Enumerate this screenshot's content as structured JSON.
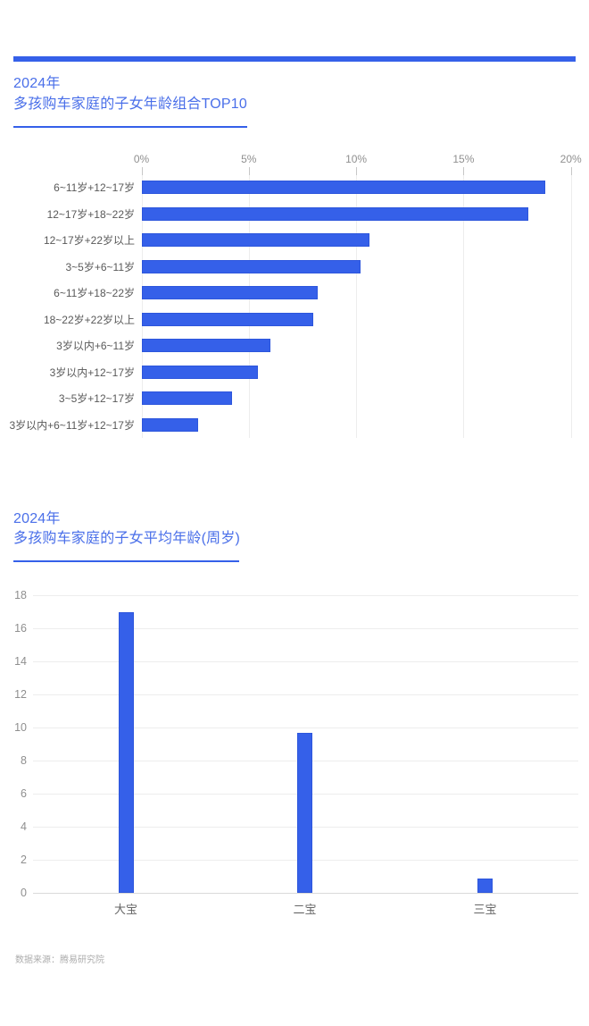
{
  "page": {
    "accent_color": "#3560e9",
    "title_color": "#4a6fe9",
    "grid_color": "#ededed",
    "axis_text_color": "#8f8f8f",
    "label_text_color": "#595959"
  },
  "footer": {
    "source_label": "数据来源：腾易研究院"
  },
  "chart_data": [
    {
      "type": "bar",
      "orientation": "horizontal",
      "title": "2024年",
      "subtitle": "多孩购车家庭的子女年龄组合TOP10",
      "categories": [
        "6~11岁+12~17岁",
        "12~17岁+18~22岁",
        "12~17岁+22岁以上",
        "3~5岁+6~11岁",
        "6~11岁+18~22岁",
        "18~22岁+22岁以上",
        "3岁以内+6~11岁",
        "3岁以内+12~17岁",
        "3~5岁+12~17岁",
        "3岁以内+6~11岁+12~17岁"
      ],
      "values": [
        18.8,
        18.0,
        10.6,
        10.2,
        8.2,
        8.0,
        6.0,
        5.4,
        4.2,
        2.6
      ],
      "unit": "%",
      "xlim": [
        0,
        20
      ],
      "xticks": [
        0,
        5,
        10,
        15,
        20
      ],
      "xtick_labels": [
        "0%",
        "5%",
        "10%",
        "15%",
        "20%"
      ],
      "grid": true,
      "legend": false,
      "bar_color": "#3560e9"
    },
    {
      "type": "bar",
      "orientation": "vertical",
      "title": "2024年",
      "subtitle": "多孩购车家庭的子女平均年龄(周岁)",
      "categories": [
        "大宝",
        "二宝",
        "三宝"
      ],
      "values": [
        17.0,
        9.7,
        0.9
      ],
      "unit": "周岁",
      "ylim": [
        0,
        18
      ],
      "yticks": [
        0,
        2,
        4,
        6,
        8,
        10,
        12,
        14,
        16,
        18
      ],
      "grid": true,
      "legend": false,
      "bar_color": "#3560e9"
    }
  ]
}
